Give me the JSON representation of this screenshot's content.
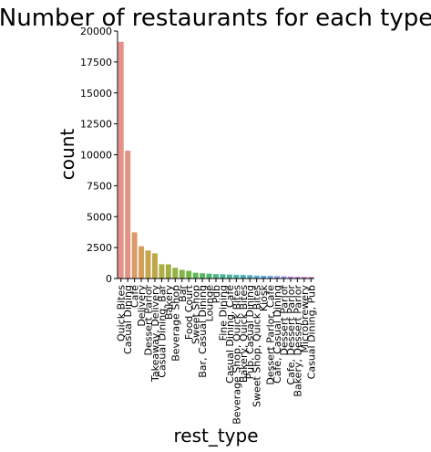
{
  "chart_data": {
    "type": "bar",
    "title": "Number of restaurants for each type",
    "xlabel": "rest_type",
    "ylabel": "count",
    "ylim": [
      0,
      20000
    ],
    "yticks": [
      0,
      2500,
      5000,
      7500,
      10000,
      12500,
      15000,
      17500,
      20000
    ],
    "grid": false,
    "legend": "none",
    "categories": [
      "Quick Bites",
      "Casual Dining",
      "Cafe",
      "Delivery",
      "Dessert Parlor",
      "Takeaway, Delivery",
      "Casual Dining, Bar",
      "Bakery",
      "Beverage Shop",
      "Bar",
      "Food Court",
      "Sweet Shop",
      "Bar, Casual Dining",
      "Lounge",
      "Pub",
      "Fine Dining",
      "Casual Dining, Cafe",
      "Beverage Shop, Quick Bites",
      "Bakery, Quick Bites",
      "Pub, Casual Dining",
      "Sweet Shop, Quick Bites",
      "Kiosk",
      "Dessert Parlor, Cafe",
      "Cafe, Casual Dining",
      "Dessert Parlor",
      "Cafe, Dessert Parlor",
      "Bakery, Dessert Parlor",
      "Microbrewery",
      "Casual Dining, Pub"
    ],
    "values": [
      19132,
      10330,
      3732,
      2604,
      2263,
      2037,
      1154,
      1141,
      867,
      697,
      624,
      468,
      425,
      396,
      357,
      346,
      319,
      302,
      289,
      271,
      236,
      219,
      212,
      198,
      183,
      164,
      151,
      143,
      134
    ],
    "colors": [
      "#e8908a",
      "#e39381",
      "#db9a6b",
      "#d2a05a",
      "#c8a44d",
      "#bda849",
      "#b0ac46",
      "#a3af45",
      "#94b245",
      "#84b548",
      "#72b84d",
      "#61ba56",
      "#55bb66",
      "#4fbb77",
      "#4cba86",
      "#4ab994",
      "#4ab8a1",
      "#4bb7ae",
      "#4db5ba",
      "#4fb3c6",
      "#55b0d3",
      "#5daadd",
      "#71a3e6",
      "#8b9cea",
      "#a395ea",
      "#b98fe7",
      "#cc8ae1",
      "#db88d6",
      "#e68bc5"
    ]
  }
}
